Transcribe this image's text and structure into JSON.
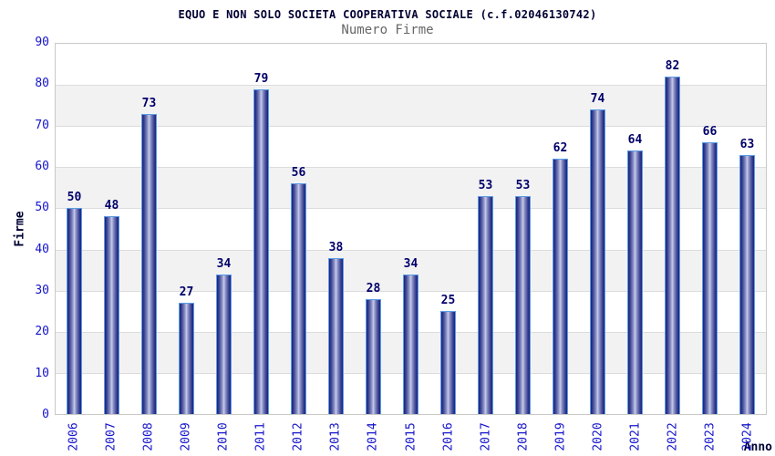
{
  "header": {
    "title": "EQUO E NON SOLO SOCIETA COOPERATIVA SOCIALE (c.f.02046130742)",
    "subtitle": "Numero Firme"
  },
  "chart_data": {
    "type": "bar",
    "title": "Numero Firme",
    "categories": [
      "2006",
      "2007",
      "2008",
      "2009",
      "2010",
      "2011",
      "2012",
      "2013",
      "2014",
      "2015",
      "2016",
      "2017",
      "2018",
      "2019",
      "2020",
      "2021",
      "2022",
      "2023",
      "2024"
    ],
    "values": [
      50,
      48,
      73,
      27,
      34,
      79,
      56,
      38,
      28,
      34,
      25,
      53,
      53,
      62,
      74,
      64,
      82,
      66,
      63
    ],
    "xlabel": "Anno",
    "ylabel": "Firme",
    "ylim": [
      0,
      90
    ],
    "yticks": [
      0,
      10,
      20,
      30,
      40,
      50,
      60,
      70,
      80,
      90
    ],
    "grid": true,
    "legend": "none",
    "colors": {
      "band": "#f2f2f2",
      "gridline": "#dcdcdc",
      "bar_border": "#5b9ce6",
      "bar_dark": "#1a2280",
      "bar_light": "#c8cce9",
      "tick_label": "#1414cc",
      "value_label": "#00006a",
      "title": "#000033",
      "subtitle": "#666666"
    }
  }
}
